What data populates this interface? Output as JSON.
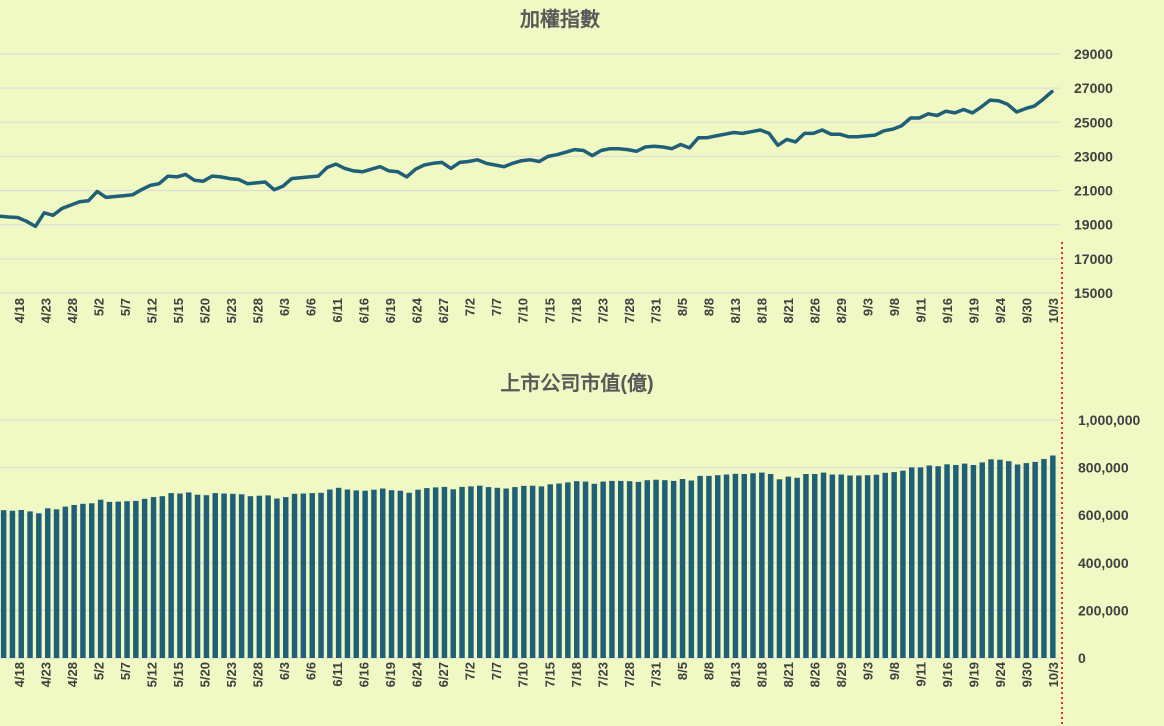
{
  "chart_data": [
    {
      "type": "line",
      "title": "加權指數",
      "ylim": [
        15000,
        29000
      ],
      "yticks": [
        "29000",
        "27000",
        "25000",
        "23000",
        "21000",
        "19000",
        "17000",
        "15000"
      ],
      "xtick_labels": [
        "4/18",
        "4/23",
        "4/28",
        "5/2",
        "5/7",
        "5/12",
        "5/15",
        "5/20",
        "5/23",
        "5/28",
        "6/3",
        "6/6",
        "6/11",
        "6/16",
        "6/19",
        "6/24",
        "6/27",
        "7/2",
        "7/7",
        "7/10",
        "7/15",
        "7/18",
        "7/23",
        "7/28",
        "7/31",
        "8/5",
        "8/8",
        "8/13",
        "8/18",
        "8/21",
        "8/26",
        "8/29",
        "9/3",
        "9/8",
        "9/11",
        "9/16",
        "9/19",
        "9/24",
        "9/30",
        "10/3"
      ],
      "grid": true,
      "colors": {
        "line": "#1f5f77",
        "background": "#f0f8c4",
        "marker_line": "#e03030"
      },
      "series": [
        {
          "values": [
            19500,
            19450,
            19420,
            19200,
            18900,
            19700,
            19550,
            19950,
            20150,
            20350,
            20400,
            20950,
            20600,
            20650,
            20700,
            20750,
            21050,
            21300,
            21400,
            21850,
            21800,
            21950,
            21600,
            21550,
            21850,
            21800,
            21700,
            21650,
            21400,
            21450,
            21500,
            21050,
            21250,
            21700,
            21750,
            21800,
            21850,
            22350,
            22550,
            22300,
            22150,
            22100,
            22250,
            22400,
            22150,
            22100,
            21800,
            22250,
            22500,
            22600,
            22650,
            22300,
            22650,
            22700,
            22800,
            22600,
            22500,
            22400,
            22600,
            22750,
            22800,
            22700,
            23000,
            23100,
            23250,
            23400,
            23350,
            23050,
            23350,
            23450,
            23450,
            23400,
            23300,
            23550,
            23600,
            23550,
            23450,
            23700,
            23500,
            24100,
            24100,
            24200,
            24300,
            24400,
            24350,
            24450,
            24550,
            24350,
            23650,
            24000,
            23850,
            24350,
            24350,
            24550,
            24300,
            24300,
            24150,
            24150,
            24200,
            24250,
            24500,
            24600,
            24800,
            25250,
            25250,
            25500,
            25400,
            25650,
            25550,
            25750,
            25550,
            25900,
            26300,
            26250,
            26050,
            25600,
            25800,
            25950,
            26350,
            26800
          ]
        }
      ]
    },
    {
      "type": "bar",
      "title": "上市公司市值(億)",
      "ylim": [
        0,
        1000000
      ],
      "yticks": [
        "1,000,000",
        "800,000",
        "600,000",
        "400,000",
        "200,000",
        "0"
      ],
      "xtick_labels": [
        "4/18",
        "4/23",
        "4/28",
        "5/2",
        "5/7",
        "5/12",
        "5/15",
        "5/20",
        "5/23",
        "5/28",
        "6/3",
        "6/6",
        "6/11",
        "6/16",
        "6/19",
        "6/24",
        "6/27",
        "7/2",
        "7/7",
        "7/10",
        "7/15",
        "7/18",
        "7/23",
        "7/28",
        "7/31",
        "8/5",
        "8/8",
        "8/13",
        "8/18",
        "8/21",
        "8/26",
        "8/29",
        "9/3",
        "9/8",
        "9/11",
        "9/16",
        "9/19",
        "9/24",
        "9/30",
        "10/3"
      ],
      "grid": true,
      "colors": {
        "bar": "#1f5f77",
        "background": "#f0f8c4"
      },
      "series": [
        {
          "values": [
            621000,
            619000,
            622000,
            616000,
            608000,
            629000,
            625000,
            636000,
            643000,
            648000,
            650000,
            665000,
            656000,
            657000,
            659000,
            660000,
            669000,
            676000,
            680000,
            693000,
            691000,
            696000,
            686000,
            684000,
            693000,
            691000,
            690000,
            688000,
            680000,
            682000,
            683000,
            670000,
            676000,
            690000,
            691000,
            693000,
            694000,
            708000,
            715000,
            708000,
            704000,
            703000,
            707000,
            712000,
            705000,
            703000,
            694000,
            707000,
            714000,
            717000,
            719000,
            709000,
            719000,
            721000,
            724000,
            718000,
            715000,
            712000,
            718000,
            723000,
            724000,
            721000,
            730000,
            733000,
            738000,
            743000,
            741000,
            732000,
            741000,
            744000,
            744000,
            743000,
            740000,
            747000,
            749000,
            747000,
            744000,
            752000,
            746000,
            765000,
            765000,
            768000,
            771000,
            774000,
            773000,
            776000,
            779000,
            773000,
            751000,
            762000,
            757000,
            773000,
            773000,
            779000,
            771000,
            771000,
            767000,
            767000,
            768000,
            770000,
            778000,
            781000,
            787000,
            801000,
            801000,
            809000,
            806000,
            814000,
            811000,
            817000,
            811000,
            822000,
            835000,
            833000,
            827000,
            813000,
            819000,
            824000,
            836000,
            851000
          ]
        }
      ]
    }
  ]
}
